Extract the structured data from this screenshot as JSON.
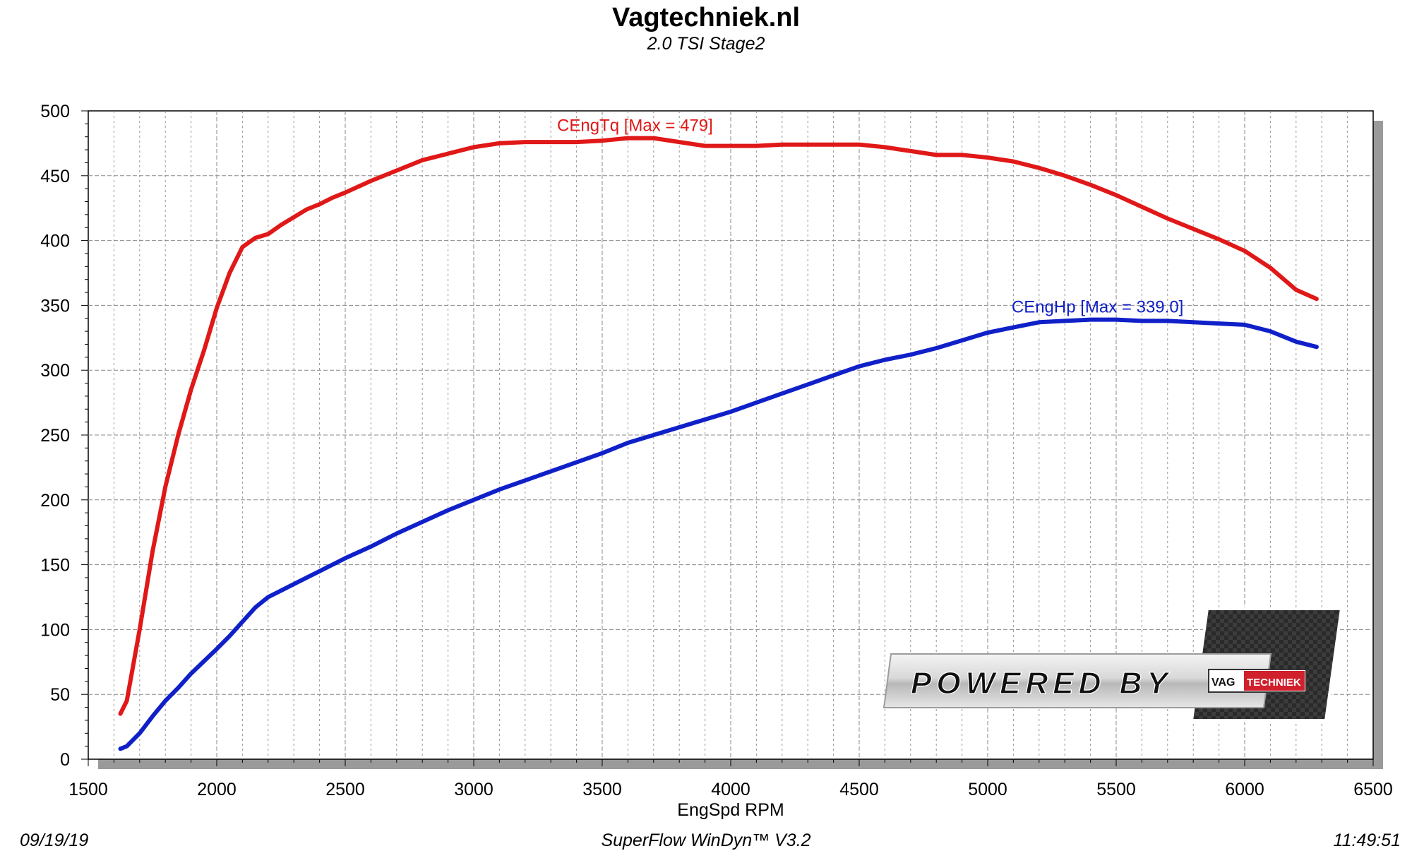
{
  "header": {
    "title": "Vagtechniek.nl",
    "subtitle": "2.0 TSI Stage2"
  },
  "footer": {
    "date": "09/19/19",
    "software": "SuperFlow WinDyn™  V3.2",
    "time": "11:49:51"
  },
  "logo": {
    "text": "POWERED BY",
    "badge_left": "VAG",
    "badge_right": "TECHNIEK"
  },
  "colors": {
    "torque": "#e01818",
    "power": "#1020c8",
    "grid": "#8a8a8a",
    "shadow": "#9a9a9a"
  },
  "chart_data": {
    "type": "line",
    "xlabel": "EngSpd RPM",
    "ylabel": "",
    "xlim": [
      1500,
      6500
    ],
    "ylim": [
      0,
      500
    ],
    "xticks": [
      1500,
      2000,
      2500,
      3000,
      3500,
      4000,
      4500,
      5000,
      5500,
      6000,
      6500
    ],
    "yticks": [
      0,
      50,
      100,
      150,
      200,
      250,
      300,
      350,
      400,
      450,
      500
    ],
    "grid": true,
    "series": [
      {
        "name": "CEngTq",
        "label": "CEngTq [Max = 479]",
        "color": "#e01818",
        "points": [
          [
            1625,
            35
          ],
          [
            1650,
            45
          ],
          [
            1700,
            100
          ],
          [
            1750,
            160
          ],
          [
            1800,
            210
          ],
          [
            1850,
            250
          ],
          [
            1900,
            285
          ],
          [
            1950,
            315
          ],
          [
            2000,
            348
          ],
          [
            2050,
            375
          ],
          [
            2100,
            395
          ],
          [
            2150,
            402
          ],
          [
            2200,
            405
          ],
          [
            2250,
            412
          ],
          [
            2300,
            418
          ],
          [
            2350,
            424
          ],
          [
            2400,
            428
          ],
          [
            2450,
            433
          ],
          [
            2500,
            437
          ],
          [
            2600,
            446
          ],
          [
            2700,
            454
          ],
          [
            2800,
            462
          ],
          [
            2900,
            467
          ],
          [
            3000,
            472
          ],
          [
            3100,
            475
          ],
          [
            3200,
            476
          ],
          [
            3300,
            476
          ],
          [
            3400,
            476
          ],
          [
            3500,
            477
          ],
          [
            3600,
            479
          ],
          [
            3700,
            479
          ],
          [
            3800,
            476
          ],
          [
            3900,
            473
          ],
          [
            4000,
            473
          ],
          [
            4100,
            473
          ],
          [
            4200,
            474
          ],
          [
            4300,
            474
          ],
          [
            4400,
            474
          ],
          [
            4500,
            474
          ],
          [
            4600,
            472
          ],
          [
            4700,
            469
          ],
          [
            4800,
            466
          ],
          [
            4900,
            466
          ],
          [
            5000,
            464
          ],
          [
            5100,
            461
          ],
          [
            5200,
            456
          ],
          [
            5300,
            450
          ],
          [
            5400,
            443
          ],
          [
            5500,
            435
          ],
          [
            5600,
            426
          ],
          [
            5700,
            417
          ],
          [
            5800,
            409
          ],
          [
            5900,
            401
          ],
          [
            6000,
            392
          ],
          [
            6100,
            379
          ],
          [
            6200,
            362
          ],
          [
            6280,
            355
          ]
        ]
      },
      {
        "name": "CEngHp",
        "label": "CEngHp [Max = 339.0]",
        "color": "#1020c8",
        "points": [
          [
            1625,
            8
          ],
          [
            1650,
            10
          ],
          [
            1700,
            20
          ],
          [
            1750,
            33
          ],
          [
            1800,
            45
          ],
          [
            1850,
            55
          ],
          [
            1900,
            66
          ],
          [
            2000,
            85
          ],
          [
            2050,
            95
          ],
          [
            2100,
            106
          ],
          [
            2150,
            117
          ],
          [
            2200,
            125
          ],
          [
            2250,
            130
          ],
          [
            2300,
            135
          ],
          [
            2400,
            145
          ],
          [
            2500,
            155
          ],
          [
            2600,
            164
          ],
          [
            2700,
            174
          ],
          [
            2800,
            183
          ],
          [
            2900,
            192
          ],
          [
            3000,
            200
          ],
          [
            3100,
            208
          ],
          [
            3200,
            215
          ],
          [
            3300,
            222
          ],
          [
            3400,
            229
          ],
          [
            3500,
            236
          ],
          [
            3600,
            244
          ],
          [
            3700,
            250
          ],
          [
            3800,
            256
          ],
          [
            3900,
            262
          ],
          [
            4000,
            268
          ],
          [
            4100,
            275
          ],
          [
            4200,
            282
          ],
          [
            4300,
            289
          ],
          [
            4400,
            296
          ],
          [
            4500,
            303
          ],
          [
            4600,
            308
          ],
          [
            4700,
            312
          ],
          [
            4800,
            317
          ],
          [
            4900,
            323
          ],
          [
            5000,
            329
          ],
          [
            5100,
            333
          ],
          [
            5200,
            337
          ],
          [
            5300,
            338
          ],
          [
            5400,
            339
          ],
          [
            5500,
            339
          ],
          [
            5600,
            338
          ],
          [
            5700,
            338
          ],
          [
            5800,
            337
          ],
          [
            5900,
            336
          ],
          [
            6000,
            335
          ],
          [
            6100,
            330
          ],
          [
            6200,
            322
          ],
          [
            6280,
            318
          ]
        ]
      }
    ]
  }
}
